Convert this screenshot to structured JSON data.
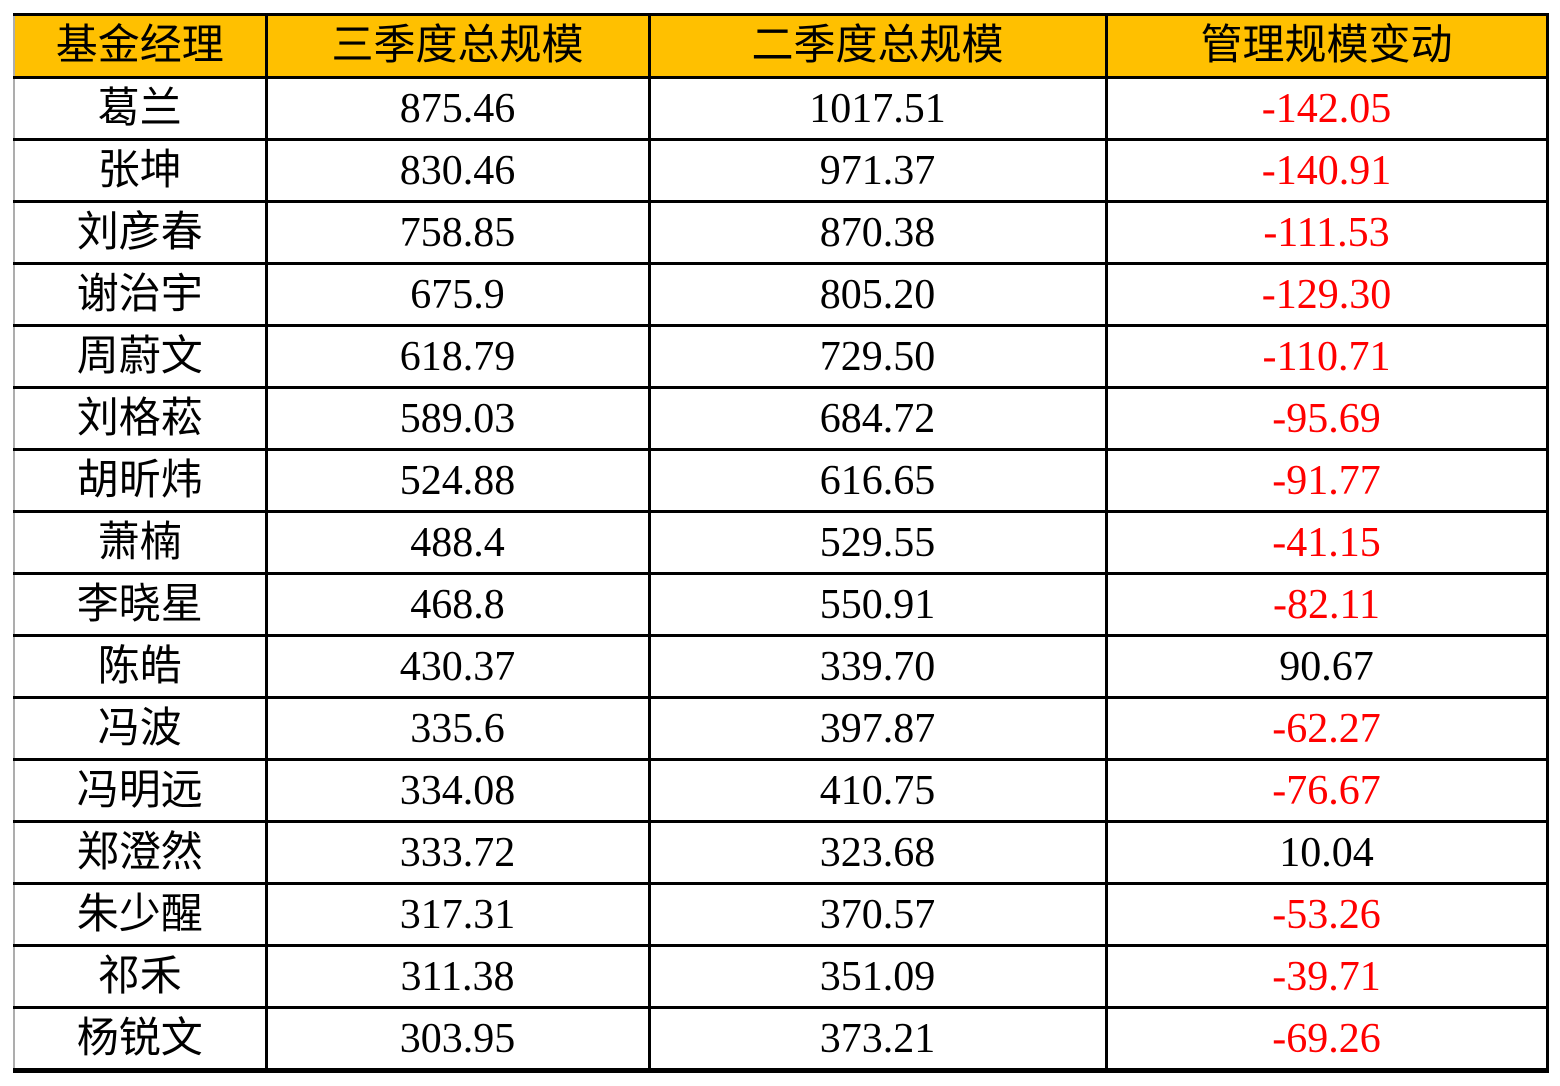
{
  "chart_data": {
    "type": "table",
    "columns": [
      "基金经理",
      "三季度总规模",
      "二季度总规模",
      "管理规模变动"
    ],
    "rows": [
      {
        "manager": "葛兰",
        "q3_scale": "875.46",
        "q2_scale": "1017.51",
        "change": "-142.05"
      },
      {
        "manager": "张坤",
        "q3_scale": "830.46",
        "q2_scale": "971.37",
        "change": "-140.91"
      },
      {
        "manager": "刘彦春",
        "q3_scale": "758.85",
        "q2_scale": "870.38",
        "change": "-111.53"
      },
      {
        "manager": "谢治宇",
        "q3_scale": "675.9",
        "q2_scale": "805.20",
        "change": "-129.30"
      },
      {
        "manager": "周蔚文",
        "q3_scale": "618.79",
        "q2_scale": "729.50",
        "change": "-110.71"
      },
      {
        "manager": "刘格菘",
        "q3_scale": "589.03",
        "q2_scale": "684.72",
        "change": "-95.69"
      },
      {
        "manager": "胡昕炜",
        "q3_scale": "524.88",
        "q2_scale": "616.65",
        "change": "-91.77"
      },
      {
        "manager": "萧楠",
        "q3_scale": "488.4",
        "q2_scale": "529.55",
        "change": "-41.15"
      },
      {
        "manager": "李晓星",
        "q3_scale": "468.8",
        "q2_scale": "550.91",
        "change": "-82.11"
      },
      {
        "manager": "陈皓",
        "q3_scale": "430.37",
        "q2_scale": "339.70",
        "change": "90.67"
      },
      {
        "manager": "冯波",
        "q3_scale": "335.6",
        "q2_scale": "397.87",
        "change": "-62.27"
      },
      {
        "manager": "冯明远",
        "q3_scale": "334.08",
        "q2_scale": "410.75",
        "change": "-76.67"
      },
      {
        "manager": "郑澄然",
        "q3_scale": "333.72",
        "q2_scale": "323.68",
        "change": "10.04"
      },
      {
        "manager": "朱少醒",
        "q3_scale": "317.31",
        "q2_scale": "370.57",
        "change": "-53.26"
      },
      {
        "manager": "祁禾",
        "q3_scale": "311.38",
        "q2_scale": "351.09",
        "change": "-39.71"
      },
      {
        "manager": "杨锐文",
        "q3_scale": "303.95",
        "q2_scale": "373.21",
        "change": "-69.26"
      }
    ]
  },
  "colors": {
    "header_bg": "#FFC000",
    "negative": "#FF0000",
    "text": "#000000",
    "border": "#000000"
  }
}
